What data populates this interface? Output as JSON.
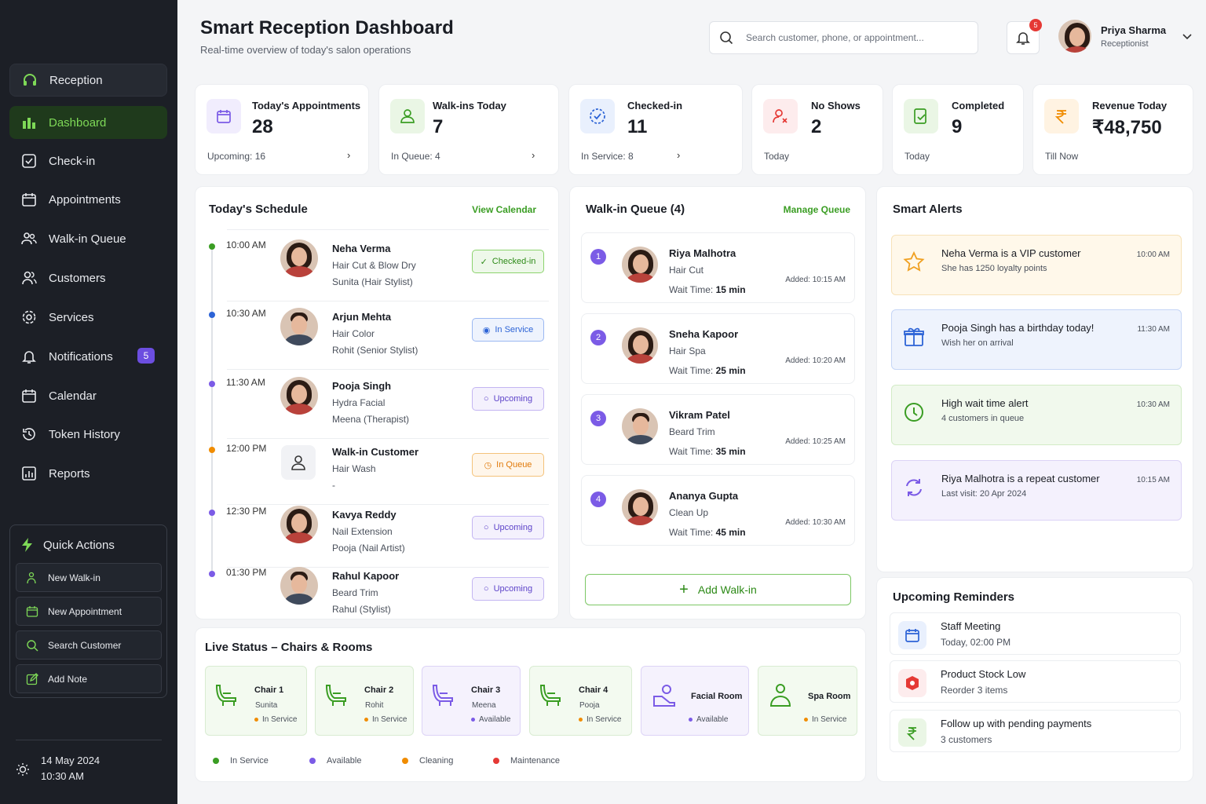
{
  "sidebar": {
    "items": [
      {
        "label": "Reception",
        "icon": "headset-icon"
      },
      {
        "label": "Dashboard",
        "icon": "dashboard-icon"
      },
      {
        "label": "Check-in",
        "icon": "check-square-icon"
      },
      {
        "label": "Appointments",
        "icon": "calendar-icon"
      },
      {
        "label": "Walk-in Queue",
        "icon": "users-icon"
      },
      {
        "label": "Customers",
        "icon": "user-group-icon"
      },
      {
        "label": "Services",
        "icon": "gear-icon"
      },
      {
        "label": "Notifications",
        "icon": "bell-icon",
        "badge": "5"
      },
      {
        "label": "Calendar",
        "icon": "calendar-icon"
      },
      {
        "label": "Token History",
        "icon": "history-icon"
      },
      {
        "label": "Reports",
        "icon": "bar-chart-icon"
      }
    ],
    "quick_actions": {
      "title": "Quick Actions",
      "buttons": [
        "New Walk-in",
        "New Appointment",
        "Search Customer",
        "Add Note"
      ]
    },
    "date": "14 May 2024",
    "time": "10:30 AM"
  },
  "header": {
    "title": "Smart Reception Dashboard",
    "subtitle": "Real-time overview of today's salon operations",
    "search_placeholder": "Search customer, phone, or appointment...",
    "notif_count": "5",
    "user_name": "Priya Sharma",
    "user_role": "Receptionist"
  },
  "stats": [
    {
      "label": "Today's Appointments",
      "value": "28",
      "sub": "Upcoming: 16",
      "arrow": "›",
      "color": "#7b5be6",
      "bg": "#f1edfd"
    },
    {
      "label": "Walk-ins Today",
      "value": "7",
      "sub": "In Queue: 4",
      "arrow": "›",
      "color": "#3a9d23",
      "bg": "#eaf6e5"
    },
    {
      "label": "Checked-in",
      "value": "11",
      "sub": "In Service: 8",
      "arrow": "›",
      "color": "#2c63d6",
      "bg": "#e9f0fd"
    },
    {
      "label": "No Shows",
      "value": "2",
      "sub": "Today",
      "arrow": "",
      "color": "#e53935",
      "bg": "#fdeced"
    },
    {
      "label": "Completed",
      "value": "9",
      "sub": "Today",
      "arrow": "",
      "color": "#3a9d23",
      "bg": "#eaf6e5"
    },
    {
      "label": "Revenue Today",
      "value": "₹48,750",
      "sub": "Till Now",
      "arrow": "",
      "color": "#f08c00",
      "bg": "#fff3e2"
    }
  ],
  "schedule": {
    "title": "Today's Schedule",
    "link": "View Calendar",
    "rows": [
      {
        "time": "10:00 AM",
        "name": "Neha Verma",
        "service": "Hair Cut & Blow Dry",
        "by": "Sunita (Hair Stylist)",
        "status": "Checked-in",
        "kind": "green",
        "dot": "#3a9d23"
      },
      {
        "time": "10:30 AM",
        "name": "Arjun Mehta",
        "service": "Hair Color",
        "by": "Rohit (Senior Stylist)",
        "status": "In Service",
        "kind": "blue",
        "dot": "#2c63d6"
      },
      {
        "time": "11:30 AM",
        "name": "Pooja Singh",
        "service": "Hydra Facial",
        "by": "Meena (Therapist)",
        "status": "Upcoming",
        "kind": "purple",
        "dot": "#7b5be6"
      },
      {
        "time": "12:00 PM",
        "name": "Walk-in Customer",
        "service": "Hair Wash",
        "by": "-",
        "status": "In Queue",
        "kind": "orange",
        "dot": "#f08c00"
      },
      {
        "time": "12:30 PM",
        "name": "Kavya Reddy",
        "service": "Nail Extension",
        "by": "Pooja (Nail Artist)",
        "status": "Upcoming",
        "kind": "purple",
        "dot": "#7b5be6"
      },
      {
        "time": "01:30 PM",
        "name": "Rahul Kapoor",
        "service": "Beard Trim",
        "by": "Rahul (Stylist)",
        "status": "Upcoming",
        "kind": "purple",
        "dot": "#7b5be6"
      }
    ]
  },
  "queue": {
    "title": "Walk-in Queue (4)",
    "link": "Manage Queue",
    "wait_label": "Wait Time:",
    "items": [
      {
        "num": "1",
        "name": "Riya Malhotra",
        "service": "Hair Cut",
        "wait": "15 min",
        "added": "Added: 10:15 AM"
      },
      {
        "num": "2",
        "name": "Sneha Kapoor",
        "service": "Hair Spa",
        "wait": "25 min",
        "added": "Added: 10:20 AM"
      },
      {
        "num": "3",
        "name": "Vikram Patel",
        "service": "Beard Trim",
        "wait": "35 min",
        "added": "Added: 10:25 AM"
      },
      {
        "num": "4",
        "name": "Ananya Gupta",
        "service": "Clean Up",
        "wait": "45 min",
        "added": "Added: 10:30 AM"
      }
    ],
    "add_label": "Add Walk-in"
  },
  "alerts": {
    "title": "Smart Alerts",
    "items": [
      {
        "title": "Neha Verma is a VIP customer",
        "sub": "She has 1250 loyalty points",
        "time": "10:00 AM",
        "bg": "#fff8ea",
        "border": "#f7e2b8",
        "color": "#f0a020"
      },
      {
        "title": "Pooja Singh has a birthday today!",
        "sub": "Wish her on arrival",
        "time": "11:30 AM",
        "bg": "#eef3fd",
        "border": "#c6d6f6",
        "color": "#2c63d6"
      },
      {
        "title": "High wait time alert",
        "sub": "4 customers in queue",
        "time": "10:30 AM",
        "bg": "#f1f9ed",
        "border": "#d2ebc6",
        "color": "#3a9d23"
      },
      {
        "title": "Riya Malhotra is a repeat customer",
        "sub": "Last visit: 20 Apr 2024",
        "time": "10:15 AM",
        "bg": "#f4f1fd",
        "border": "#dcd3f6",
        "color": "#7b5be6"
      }
    ]
  },
  "reminders": {
    "title": "Upcoming Reminders",
    "items": [
      {
        "title": "Staff Meeting",
        "sub": "Today, 02:00 PM",
        "bg": "#e9f0fd",
        "color": "#2c63d6",
        "icon": "calendar-icon"
      },
      {
        "title": "Product Stock Low",
        "sub": "Reorder 3 items",
        "bg": "#fdeced",
        "color": "#e53935",
        "icon": "box-icon"
      },
      {
        "title": "Follow up with pending payments",
        "sub": "3 customers",
        "bg": "#eaf6e5",
        "color": "#3a9d23",
        "icon": "rupee-icon"
      }
    ]
  },
  "live_status": {
    "title": "Live Status – Chairs & Rooms",
    "rooms": [
      {
        "name": "Chair 1",
        "person": "Sunita",
        "status": "In Service",
        "kind": "busy"
      },
      {
        "name": "Chair 2",
        "person": "Rohit",
        "status": "In Service",
        "kind": "busy"
      },
      {
        "name": "Chair 3",
        "person": "Meena",
        "status": "Available",
        "kind": "av"
      },
      {
        "name": "Chair 4",
        "person": "Pooja",
        "status": "In Service",
        "kind": "busy"
      },
      {
        "name": "Facial Room",
        "person": "",
        "status": "Available",
        "kind": "av"
      },
      {
        "name": "Spa Room",
        "person": "",
        "status": "In Service",
        "kind": "busy"
      }
    ],
    "legend": [
      {
        "label": "In Service",
        "color": "#3a9d23"
      },
      {
        "label": "Available",
        "color": "#7b5be6"
      },
      {
        "label": "Cleaning",
        "color": "#f08c00"
      },
      {
        "label": "Maintenance",
        "color": "#e53935"
      }
    ]
  }
}
